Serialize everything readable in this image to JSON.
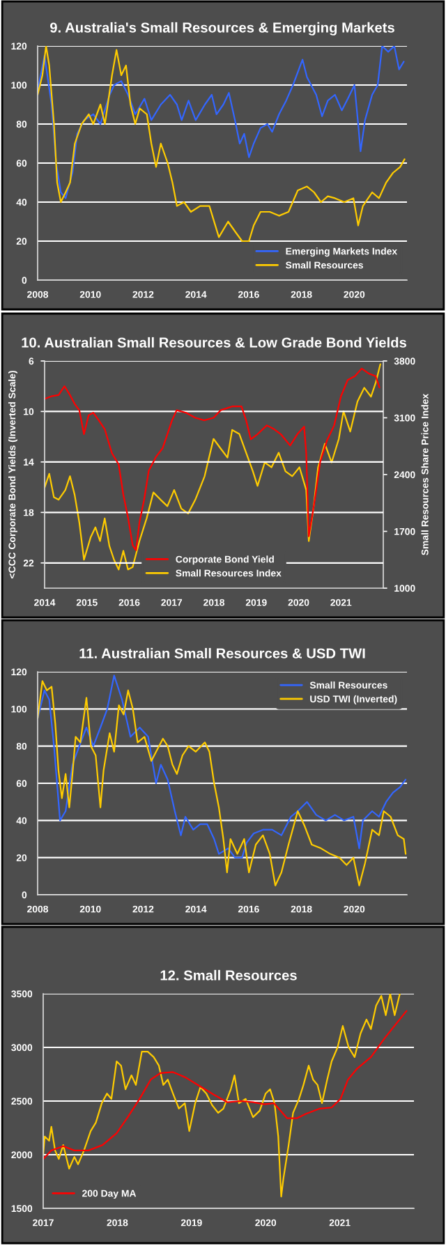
{
  "chart_data": [
    {
      "type": "line",
      "title": "9. Australia's Small Resources & Emerging Markets",
      "xlim": [
        2008,
        2022
      ],
      "xticks": [
        2008,
        2010,
        2012,
        2014,
        2016,
        2018,
        2020
      ],
      "ylim": [
        0,
        120
      ],
      "yticks": [
        0,
        20,
        40,
        60,
        80,
        100,
        120
      ],
      "grid": "y",
      "legend": "bottom right",
      "series": [
        {
          "name": "Emerging Markets Index",
          "color": "#3366ff",
          "x": [
            2008.0,
            2008.26,
            2008.53,
            2008.7,
            2008.88,
            2009.06,
            2009.32,
            2009.5,
            2009.76,
            2010.11,
            2010.38,
            2010.73,
            2010.9,
            2011.17,
            2011.43,
            2011.7,
            2012.05,
            2012.31,
            2012.67,
            2013.02,
            2013.28,
            2013.46,
            2013.72,
            2013.99,
            2014.34,
            2014.6,
            2014.78,
            2015.04,
            2015.25,
            2015.48,
            2015.66,
            2015.83,
            2016.01,
            2016.19,
            2016.45,
            2016.71,
            2016.89,
            2017.15,
            2017.42,
            2017.68,
            2018.04,
            2018.21,
            2018.56,
            2018.78,
            2019.0,
            2019.27,
            2019.53,
            2019.76,
            2020.01,
            2020.15,
            2020.24,
            2020.41,
            2020.68,
            2020.89,
            2021.06,
            2021.29,
            2021.52,
            2021.7,
            2021.88
          ],
          "values": [
            97,
            115,
            90,
            60,
            45,
            42,
            55,
            75,
            82,
            85,
            80,
            95,
            100,
            102,
            95,
            85,
            93,
            82,
            90,
            95,
            90,
            82,
            92,
            82,
            90,
            95,
            85,
            90,
            96,
            82,
            70,
            75,
            63,
            70,
            78,
            80,
            76,
            85,
            92,
            100,
            113,
            104,
            95,
            84,
            92,
            95,
            87,
            93,
            100,
            80,
            66,
            82,
            95,
            100,
            120,
            117,
            120,
            108,
            112
          ]
        },
        {
          "name": "Small Resources",
          "color": "#ffcc00",
          "x": [
            2008.0,
            2008.18,
            2008.32,
            2008.44,
            2008.62,
            2008.74,
            2008.88,
            2009.06,
            2009.23,
            2009.41,
            2009.67,
            2009.94,
            2010.11,
            2010.38,
            2010.55,
            2010.82,
            2010.99,
            2011.17,
            2011.35,
            2011.52,
            2011.7,
            2011.87,
            2012.14,
            2012.31,
            2012.49,
            2012.67,
            2012.93,
            2013.11,
            2013.28,
            2013.55,
            2013.81,
            2014.16,
            2014.51,
            2014.87,
            2015.22,
            2015.48,
            2015.75,
            2016.01,
            2016.19,
            2016.45,
            2016.8,
            2017.15,
            2017.51,
            2017.86,
            2018.21,
            2018.48,
            2018.74,
            2019.0,
            2019.27,
            2019.62,
            2019.97,
            2020.15,
            2020.33,
            2020.68,
            2020.94,
            2021.21,
            2021.47,
            2021.74,
            2021.91
          ],
          "values": [
            95,
            105,
            120,
            110,
            80,
            50,
            40,
            45,
            50,
            70,
            80,
            85,
            80,
            90,
            80,
            105,
            118,
            105,
            110,
            90,
            80,
            88,
            85,
            70,
            58,
            70,
            60,
            50,
            38,
            40,
            35,
            38,
            38,
            22,
            30,
            25,
            20,
            20,
            28,
            35,
            35,
            33,
            35,
            46,
            48,
            45,
            40,
            43,
            42,
            40,
            42,
            28,
            38,
            45,
            42,
            50,
            55,
            58,
            62
          ]
        }
      ]
    },
    {
      "type": "line",
      "title": "10. Australian Small Resources & Low Grade Bond Yields",
      "ylabel": "<CCC Corporate Bond Yields (Inverted Scale)",
      "y2label": "Small Resources Share Price Index",
      "xlim": [
        2014,
        2022
      ],
      "xticks": [
        2014,
        2015,
        2016,
        2017,
        2018,
        2019,
        2020,
        2021
      ],
      "ylim": [
        24,
        6
      ],
      "yticks": [
        6,
        10,
        14,
        18,
        22
      ],
      "y2lim": [
        1000,
        3800
      ],
      "y2ticks": [
        1000,
        1700,
        2400,
        3100,
        3800
      ],
      "grid": "y",
      "legend": "bottom",
      "series": [
        {
          "name": "Corporate Bond Yield",
          "color": "#ff0000",
          "x": [
            2014.0,
            2014.16,
            2014.33,
            2014.47,
            2014.6,
            2014.71,
            2014.82,
            2014.93,
            2015.04,
            2015.15,
            2015.28,
            2015.42,
            2015.59,
            2015.75,
            2015.86,
            2015.97,
            2016.08,
            2016.16,
            2016.24,
            2016.35,
            2016.46,
            2016.63,
            2016.79,
            2016.9,
            2017.01,
            2017.12,
            2017.34,
            2017.56,
            2017.77,
            2017.99,
            2018.16,
            2018.43,
            2018.65,
            2018.76,
            2018.87,
            2019.03,
            2019.25,
            2019.42,
            2019.58,
            2019.8,
            2019.97,
            2020.13,
            2020.18,
            2020.24,
            2020.32,
            2020.4,
            2020.51,
            2020.67,
            2020.84,
            2021.0,
            2021.16,
            2021.33,
            2021.49,
            2021.66,
            2021.82,
            2021.91
          ],
          "values": [
            9.0,
            8.8,
            8.7,
            8.0,
            8.7,
            9.4,
            9.9,
            11.8,
            10.3,
            10.1,
            10.7,
            11.4,
            13.3,
            14.2,
            16.6,
            18.4,
            20.6,
            21.0,
            18.8,
            17.0,
            14.7,
            13.6,
            12.9,
            11.8,
            10.7,
            9.9,
            10.1,
            10.5,
            10.7,
            10.5,
            9.9,
            9.6,
            9.6,
            10.7,
            12.2,
            11.8,
            11.1,
            11.4,
            11.8,
            12.7,
            11.8,
            11.2,
            13.3,
            19.9,
            18.3,
            16.6,
            14.0,
            12.3,
            11.1,
            8.8,
            7.5,
            7.2,
            6.6,
            7.0,
            7.2,
            8.1
          ]
        },
        {
          "name": "Small Resources Index",
          "color": "#ffcc00",
          "axis": "y2",
          "x": [
            2014.0,
            2014.11,
            2014.22,
            2014.33,
            2014.49,
            2014.6,
            2014.71,
            2014.82,
            2014.93,
            2015.09,
            2015.2,
            2015.31,
            2015.42,
            2015.53,
            2015.64,
            2015.75,
            2015.86,
            2015.97,
            2016.08,
            2016.24,
            2016.41,
            2016.57,
            2016.74,
            2016.9,
            2017.06,
            2017.23,
            2017.39,
            2017.56,
            2017.78,
            2017.99,
            2018.16,
            2018.32,
            2018.43,
            2018.6,
            2018.76,
            2018.92,
            2019.03,
            2019.2,
            2019.36,
            2019.53,
            2019.69,
            2019.85,
            2020.02,
            2020.18,
            2020.24,
            2020.35,
            2020.46,
            2020.62,
            2020.78,
            2020.95,
            2021.06,
            2021.22,
            2021.39,
            2021.55,
            2021.71,
            2021.82,
            2021.93
          ],
          "values": [
            2240,
            2410,
            2120,
            2090,
            2210,
            2380,
            2150,
            1810,
            1350,
            1630,
            1750,
            1580,
            1860,
            1520,
            1350,
            1230,
            1460,
            1230,
            1260,
            1580,
            1860,
            2180,
            2090,
            2010,
            2210,
            1980,
            1920,
            2090,
            2380,
            2840,
            2720,
            2610,
            2950,
            2900,
            2670,
            2440,
            2260,
            2550,
            2490,
            2670,
            2440,
            2380,
            2490,
            2210,
            1580,
            1980,
            2490,
            2780,
            2550,
            2840,
            3180,
            2930,
            3300,
            3470,
            3360,
            3530,
            3760
          ]
        }
      ]
    },
    {
      "type": "line",
      "title": "11. Australian Small Resources & USD TWI",
      "xlim": [
        2008,
        2022
      ],
      "xticks": [
        2008,
        2010,
        2012,
        2014,
        2016,
        2018,
        2020
      ],
      "ylim": [
        0,
        120
      ],
      "yticks": [
        0,
        20,
        40,
        60,
        80,
        100,
        120
      ],
      "grid": "y",
      "legend": "top right",
      "series": [
        {
          "name": "Small Resources",
          "color": "#3366ff",
          "x": [
            2008.0,
            2008.26,
            2008.44,
            2008.62,
            2008.85,
            2009.06,
            2009.32,
            2009.58,
            2009.85,
            2010.11,
            2010.38,
            2010.64,
            2010.9,
            2011.2,
            2011.52,
            2011.87,
            2012.19,
            2012.49,
            2012.67,
            2012.93,
            2013.2,
            2013.43,
            2013.6,
            2013.9,
            2014.16,
            2014.43,
            2014.69,
            2014.87,
            2015.22,
            2015.48,
            2015.75,
            2015.92,
            2016.19,
            2016.54,
            2016.89,
            2017.24,
            2017.6,
            2017.86,
            2018.21,
            2018.56,
            2018.92,
            2019.27,
            2019.62,
            2019.97,
            2020.19,
            2020.33,
            2020.68,
            2020.94,
            2021.21,
            2021.47,
            2021.74,
            2021.95
          ],
          "values": [
            95,
            110,
            105,
            80,
            40,
            45,
            70,
            80,
            90,
            80,
            90,
            100,
            118,
            105,
            85,
            90,
            85,
            60,
            70,
            62,
            45,
            32,
            42,
            35,
            38,
            38,
            30,
            22,
            25,
            20,
            20,
            28,
            33,
            35,
            35,
            32,
            42,
            45,
            50,
            43,
            40,
            43,
            40,
            42,
            25,
            40,
            45,
            42,
            50,
            55,
            58,
            62
          ]
        },
        {
          "name": "USD TWI (Inverted)",
          "color": "#ffcc00",
          "x": [
            2008.0,
            2008.18,
            2008.35,
            2008.53,
            2008.67,
            2008.79,
            2008.92,
            2009.06,
            2009.2,
            2009.32,
            2009.44,
            2009.62,
            2009.85,
            2010.02,
            2010.2,
            2010.38,
            2010.5,
            2010.73,
            2010.9,
            2011.08,
            2011.26,
            2011.43,
            2011.61,
            2011.79,
            2012.05,
            2012.31,
            2012.49,
            2012.75,
            2012.93,
            2013.11,
            2013.28,
            2013.49,
            2013.72,
            2013.99,
            2014.34,
            2014.51,
            2014.69,
            2014.87,
            2015.04,
            2015.18,
            2015.31,
            2015.57,
            2015.83,
            2016.01,
            2016.27,
            2016.54,
            2016.8,
            2017.01,
            2017.24,
            2017.51,
            2017.86,
            2018.12,
            2018.39,
            2018.74,
            2019.09,
            2019.44,
            2019.71,
            2019.97,
            2020.19,
            2020.41,
            2020.68,
            2020.94,
            2021.12,
            2021.38,
            2021.65,
            2021.88,
            2021.95
          ],
          "values": [
            95,
            115,
            110,
            112,
            92,
            67,
            52,
            65,
            47,
            65,
            85,
            82,
            106,
            80,
            75,
            47,
            67,
            87,
            77,
            102,
            97,
            110,
            100,
            82,
            85,
            72,
            77,
            84,
            80,
            70,
            65,
            75,
            80,
            77,
            82,
            77,
            60,
            47,
            30,
            12,
            30,
            22,
            30,
            12,
            27,
            32,
            22,
            5,
            12,
            27,
            45,
            37,
            27,
            25,
            22,
            20,
            16,
            20,
            5,
            17,
            35,
            32,
            45,
            42,
            32,
            30,
            22
          ]
        }
      ]
    },
    {
      "type": "line",
      "title": "12. Small Resources",
      "xlim": [
        2017,
        2022
      ],
      "xticks": [
        2017,
        2018,
        2019,
        2020,
        2021
      ],
      "ylim": [
        1500,
        3500
      ],
      "yticks": [
        1500,
        2000,
        2500,
        3000,
        3500
      ],
      "grid": "y",
      "legend": "bottom left",
      "series": [
        {
          "color": "#ffcc00",
          "x": [
            2017.0,
            2017.02,
            2017.08,
            2017.11,
            2017.16,
            2017.21,
            2017.27,
            2017.35,
            2017.42,
            2017.47,
            2017.55,
            2017.64,
            2017.71,
            2017.79,
            2017.86,
            2017.92,
            2017.99,
            2018.05,
            2018.11,
            2018.19,
            2018.25,
            2018.33,
            2018.41,
            2018.49,
            2018.56,
            2018.62,
            2018.68,
            2018.75,
            2018.83,
            2018.91,
            2018.97,
            2019.05,
            2019.12,
            2019.2,
            2019.28,
            2019.36,
            2019.43,
            2019.53,
            2019.58,
            2019.64,
            2019.73,
            2019.83,
            2019.92,
            2020.0,
            2020.06,
            2020.12,
            2020.17,
            2020.21,
            2020.24,
            2020.31,
            2020.37,
            2020.45,
            2020.51,
            2020.58,
            2020.64,
            2020.7,
            2020.76,
            2020.83,
            2020.89,
            2020.97,
            2021.04,
            2021.12,
            2021.2,
            2021.28,
            2021.36,
            2021.42,
            2021.49,
            2021.56,
            2021.62,
            2021.68,
            2021.74,
            2021.81
          ],
          "values": [
            2000,
            2170,
            2130,
            2260,
            2040,
            1960,
            2090,
            1870,
            1980,
            1910,
            2040,
            2220,
            2300,
            2480,
            2570,
            2520,
            2870,
            2830,
            2610,
            2740,
            2650,
            2960,
            2960,
            2910,
            2830,
            2650,
            2700,
            2570,
            2430,
            2480,
            2220,
            2480,
            2630,
            2570,
            2460,
            2390,
            2430,
            2610,
            2740,
            2480,
            2520,
            2350,
            2410,
            2570,
            2610,
            2480,
            2170,
            1610,
            1780,
            2090,
            2390,
            2520,
            2650,
            2830,
            2700,
            2650,
            2480,
            2700,
            2870,
            3000,
            3200,
            3000,
            2910,
            3130,
            3260,
            3170,
            3390,
            3480,
            3300,
            3500,
            3300,
            3500
          ]
        },
        {
          "name": "200 Day MA",
          "color": "#ff0000",
          "x": [
            2017.0,
            2017.11,
            2017.27,
            2017.42,
            2017.61,
            2017.8,
            2017.99,
            2018.14,
            2018.3,
            2018.45,
            2018.58,
            2018.75,
            2018.92,
            2019.11,
            2019.3,
            2019.48,
            2019.67,
            2019.83,
            2019.98,
            2020.11,
            2020.2,
            2020.29,
            2020.42,
            2020.54,
            2020.73,
            2020.89,
            2021.01,
            2021.11,
            2021.23,
            2021.42,
            2021.61,
            2021.76,
            2021.9
          ],
          "values": [
            1960,
            2040,
            2080,
            2040,
            2040,
            2090,
            2200,
            2350,
            2520,
            2700,
            2760,
            2770,
            2720,
            2640,
            2560,
            2490,
            2500,
            2490,
            2470,
            2480,
            2410,
            2340,
            2340,
            2380,
            2430,
            2440,
            2520,
            2700,
            2800,
            2910,
            3090,
            3220,
            3340
          ]
        }
      ]
    }
  ]
}
